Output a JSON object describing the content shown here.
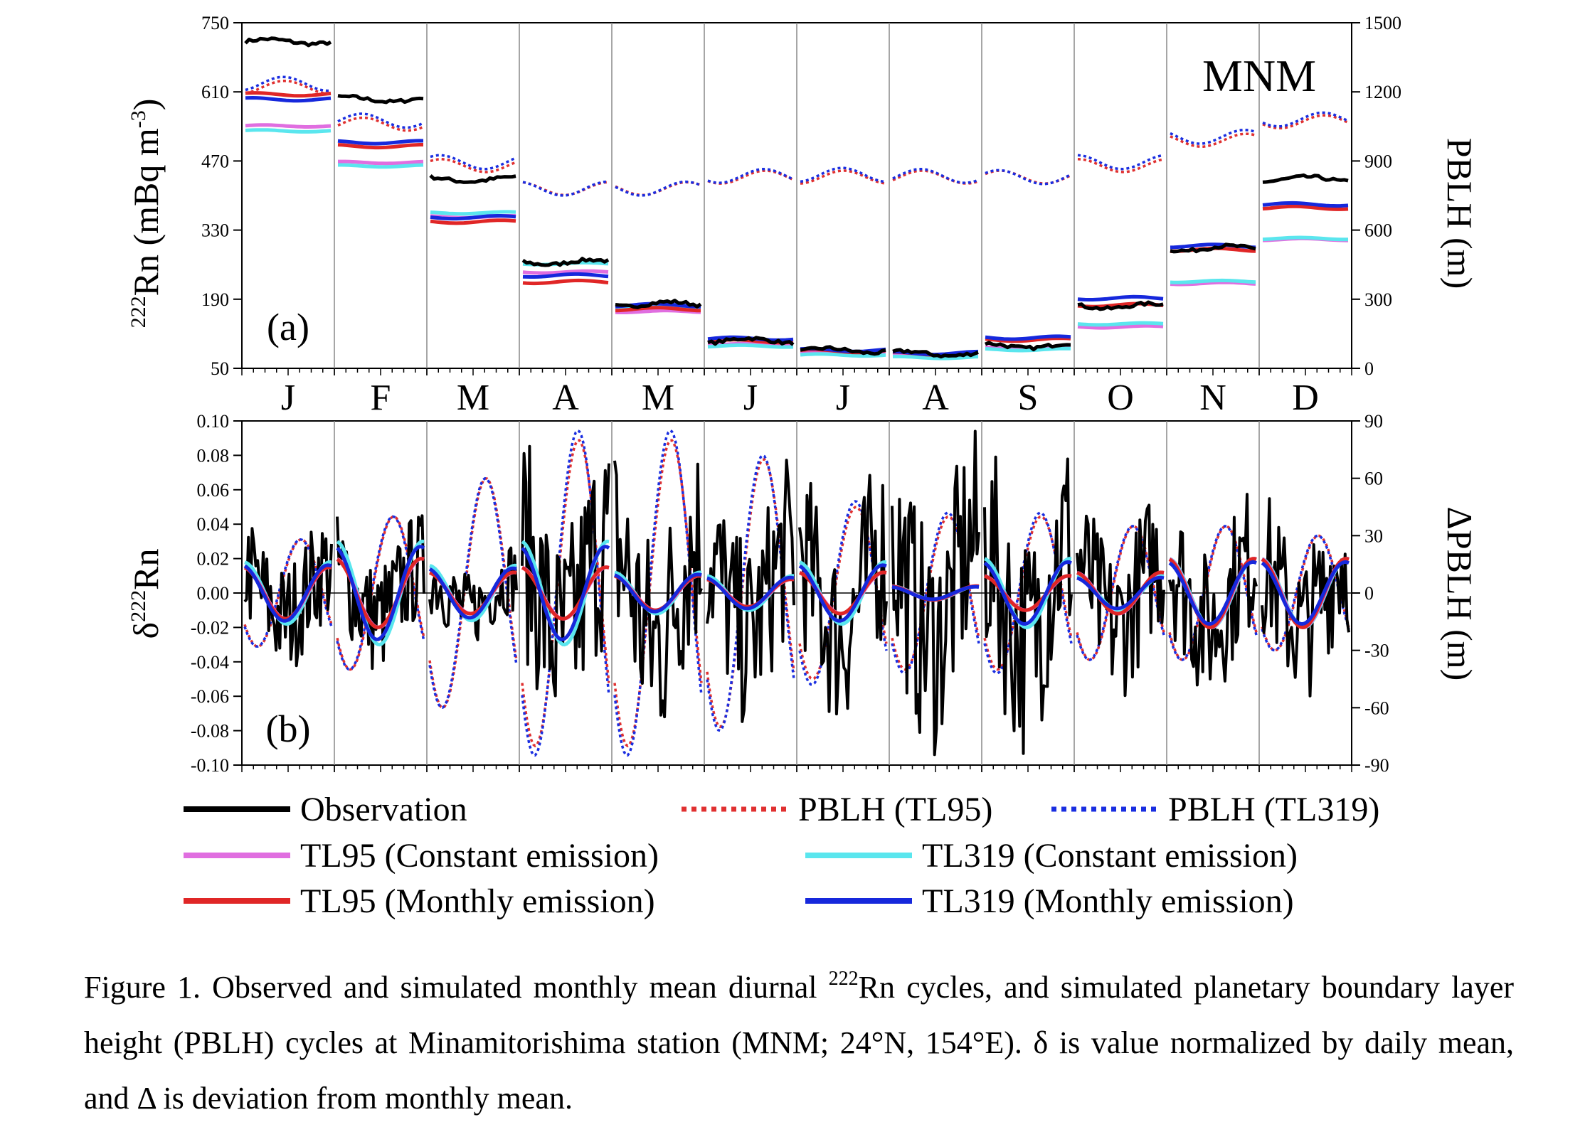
{
  "chart_data": [
    {
      "type": "line",
      "panel_label": "(a)",
      "station": "MNM",
      "months": [
        "J",
        "F",
        "M",
        "A",
        "M",
        "J",
        "J",
        "A",
        "S",
        "O",
        "N",
        "D"
      ],
      "y_left": {
        "label_sup": "222",
        "label_main": "Rn (mBq m",
        "label_exp": "-3",
        "label_close": ")",
        "range": [
          50,
          750
        ],
        "ticks": [
          50,
          190,
          330,
          470,
          610,
          750
        ]
      },
      "y_right": {
        "label": "PBLH (m)",
        "range": [
          0,
          1500
        ],
        "ticks": [
          0,
          300,
          600,
          900,
          1200,
          1500
        ]
      },
      "monthly_levels_left_axis": {
        "Observation": [
          712,
          595,
          433,
          265,
          180,
          106,
          86,
          80,
          96,
          176,
          293,
          433
        ],
        "TL95 (Constant emission)": [
          541,
          467,
          357,
          245,
          165,
          98,
          80,
          75,
          91,
          134,
          222,
          311
        ],
        "TL319 (Constant emission)": [
          531,
          460,
          365,
          262,
          172,
          95,
          77,
          72,
          88,
          140,
          226,
          313
        ],
        "TL95 (Monthly emission)": [
          605,
          500,
          347,
          225,
          170,
          105,
          85,
          80,
          108,
          178,
          290,
          375
        ],
        "TL319 (Monthly emission)": [
          595,
          508,
          356,
          238,
          178,
          110,
          87,
          81,
          112,
          192,
          298,
          382
        ]
      },
      "monthly_levels_right_axis": {
        "PBLH (TL95)": [
          1220,
          1060,
          880,
          780,
          780,
          830,
          830,
          830,
          830,
          880,
          990,
          1070
        ],
        "PBLH (TL319)": [
          1235,
          1075,
          895,
          780,
          780,
          835,
          840,
          835,
          830,
          895,
          1005,
          1080
        ]
      }
    },
    {
      "type": "line",
      "panel_label": "(b)",
      "y_left": {
        "label_delta": "δ",
        "label_sup": "222",
        "label_main": "Rn",
        "range": [
          -0.1,
          0.1
        ],
        "ticks": [
          "0.10",
          "0.08",
          "0.06",
          "0.04",
          "0.02",
          "0.00",
          "-0.02",
          "-0.04",
          "-0.06",
          "-0.08",
          "-0.10"
        ]
      },
      "y_right": {
        "label": "ΔPBLH (m)",
        "range": [
          -90,
          90
        ],
        "ticks": [
          90,
          60,
          30,
          0,
          -30,
          -60,
          -90
        ]
      },
      "diurnal_amplitude_left_axis": {
        "Observation": [
          0.03,
          0.03,
          0.02,
          0.06,
          0.06,
          0.05,
          0.05,
          0.06,
          0.06,
          0.04,
          0.04,
          0.04
        ],
        "TL95": [
          0.015,
          0.02,
          0.012,
          0.015,
          0.01,
          0.008,
          0.012,
          0.004,
          0.01,
          0.012,
          0.02,
          0.02
        ],
        "TL319": [
          0.018,
          0.03,
          0.016,
          0.03,
          0.012,
          0.01,
          0.018,
          0.004,
          0.02,
          0.01,
          0.02,
          0.02
        ]
      },
      "pblh_amplitude_right_axis": {
        "PBLH (TL95)": [
          28,
          40,
          60,
          80,
          80,
          70,
          45,
          40,
          40,
          35,
          35,
          30
        ],
        "PBLH (TL319)": [
          28,
          40,
          60,
          85,
          85,
          72,
          48,
          42,
          42,
          35,
          35,
          30
        ]
      }
    }
  ],
  "legend": [
    {
      "label": "Observation",
      "color": "#000000",
      "style": "solid"
    },
    {
      "label": "PBLH (TL95)",
      "color": "#e03030",
      "style": "dotted"
    },
    {
      "label": "PBLH (TL319)",
      "color": "#1a2ee0",
      "style": "dotted"
    },
    {
      "label": "TL95 (Constant emission)",
      "color": "#e06ee0",
      "style": "solid"
    },
    {
      "label": "TL319 (Constant emission)",
      "color": "#5ae6ee",
      "style": "solid"
    },
    {
      "label": "TL95 (Monthly emission)",
      "color": "#e02626",
      "style": "solid"
    },
    {
      "label": "TL319 (Monthly emission)",
      "color": "#1628dc",
      "style": "solid"
    }
  ],
  "caption": {
    "before_sup": "Figure 1. Observed and simulated monthly mean diurnal ",
    "sup": "222",
    "after_sup": "Rn cycles, and simulated planetary boundary layer height (PBLH) cycles at Minamitorishima station (MNM; 24°N, 154°E). δ is value normalized by daily mean, and Δ is deviation from monthly mean."
  }
}
